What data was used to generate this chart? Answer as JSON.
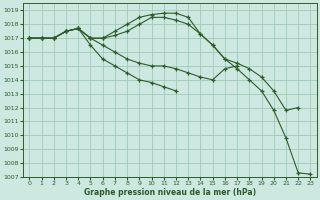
{
  "background_color": "#cce8e0",
  "grid_color": "#9ecab8",
  "line_color": "#2d5c28",
  "xlabel": "Graphe pression niveau de la mer (hPa)",
  "xlim": [
    -0.5,
    23.5
  ],
  "ylim": [
    1007,
    1019.5
  ],
  "yticks": [
    1007,
    1008,
    1009,
    1010,
    1011,
    1012,
    1013,
    1014,
    1015,
    1016,
    1017,
    1018,
    1019
  ],
  "xticks": [
    0,
    1,
    2,
    3,
    4,
    5,
    6,
    7,
    8,
    9,
    10,
    11,
    12,
    13,
    14,
    15,
    16,
    17,
    18,
    19,
    20,
    21,
    22,
    23
  ],
  "series": [
    {
      "x": [
        0,
        1,
        2,
        3,
        4,
        5,
        6,
        7,
        8,
        9,
        10,
        11,
        12,
        13,
        14,
        15,
        16,
        17,
        18,
        19,
        20,
        21,
        22,
        23
      ],
      "y": [
        1017,
        1017,
        1017,
        1017.5,
        1017.7,
        1017,
        1017,
        1017.5,
        1018,
        1018.5,
        1018.7,
        1018.8,
        1018.8,
        1018.5,
        1017.3,
        1016.5,
        1015.5,
        1014.8,
        1014.0,
        1013.2,
        1011.8,
        1009.8,
        1007.3,
        1007.2
      ]
    },
    {
      "x": [
        0,
        1,
        2,
        3,
        4,
        5,
        6,
        7,
        8,
        9,
        10,
        11,
        12,
        13,
        14,
        15,
        16,
        17,
        18,
        19,
        20,
        21,
        22
      ],
      "y": [
        1017,
        1017,
        1017,
        1017.5,
        1017.7,
        1017,
        1017,
        1017.2,
        1017.5,
        1018,
        1018.5,
        1018.5,
        1018.3,
        1018,
        1017.3,
        1016.5,
        1015.5,
        1015.2,
        1014.8,
        1014.2,
        1013.2,
        1011.8,
        1012.0
      ]
    },
    {
      "x": [
        0,
        1,
        2,
        3,
        4,
        5,
        6,
        7,
        8,
        9,
        10,
        11,
        12,
        13,
        14,
        15,
        16,
        17
      ],
      "y": [
        1017,
        1017,
        1017,
        1017.5,
        1017.7,
        1017,
        1016.5,
        1016,
        1015.5,
        1015.2,
        1015,
        1015,
        1014.8,
        1014.5,
        1014.2,
        1014.0,
        1014.8,
        1015.0
      ]
    },
    {
      "x": [
        0,
        1,
        2,
        3,
        4,
        5,
        6,
        7,
        8,
        9,
        10,
        11,
        12
      ],
      "y": [
        1017,
        1017,
        1017,
        1017.5,
        1017.7,
        1016.5,
        1015.5,
        1015,
        1014.5,
        1014,
        1013.8,
        1013.5,
        1013.2
      ]
    }
  ]
}
